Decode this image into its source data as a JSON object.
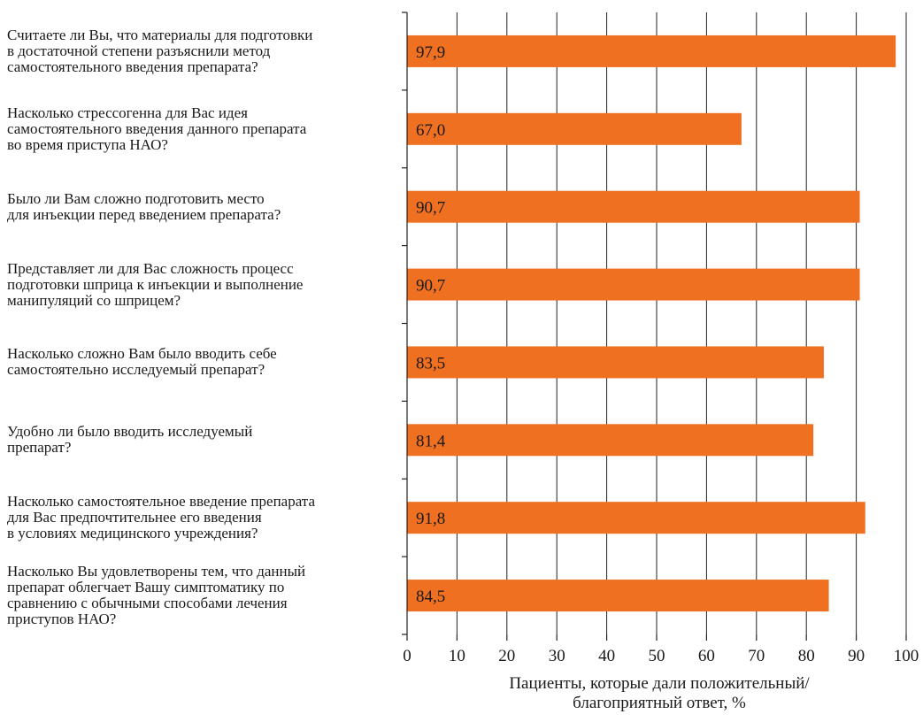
{
  "chart_data": {
    "type": "bar",
    "orientation": "horizontal",
    "categories": [
      "Считаете ли Вы, что материалы для подготовки\nв достаточной степени разъяснили метод\nсамостоятельного введения препарата?",
      "Насколько стрессогенна для Вас идея\nсамостоятельного введения данного препарата\nво время приступа НАО?",
      "Было ли Вам сложно подготовить место\nдля инъекции перед введением препарата?",
      "Представляет ли для Вас сложность процесс\nподготовки шприца к инъекции и выполнение\nманипуляций со шприцем?",
      "Насколько сложно Вам было вводить себе\nсамостоятельно исследуемый препарат?",
      "Удобно ли было вводить исследуемый\nпрепарат?",
      "Насколько самостоятельное введение препарата\nдля Вас предпочтительнее его введения\nв условиях медицинского учреждения?",
      "Насколько Вы удовлетворены тем, что данный\nпрепарат облегчает Вашу симптоматику по\nсравнению с обычными способами лечения\nприступов НАО?"
    ],
    "values": [
      97.9,
      67.0,
      90.7,
      90.7,
      83.5,
      81.4,
      91.8,
      84.5
    ],
    "data_labels": [
      "97,9",
      "67,0",
      "90,7",
      "90,7",
      "83,5",
      "81,4",
      "91,8",
      "84,5"
    ],
    "x_ticks": [
      0,
      10,
      20,
      30,
      40,
      50,
      60,
      70,
      80,
      90,
      100
    ],
    "xlim": [
      0,
      100
    ],
    "xlabel": "Пациенты, которые дали положительный/\nблагоприятный ответ, %",
    "title": "",
    "grid": true,
    "legend": "none",
    "bar_color": "#f07022"
  }
}
